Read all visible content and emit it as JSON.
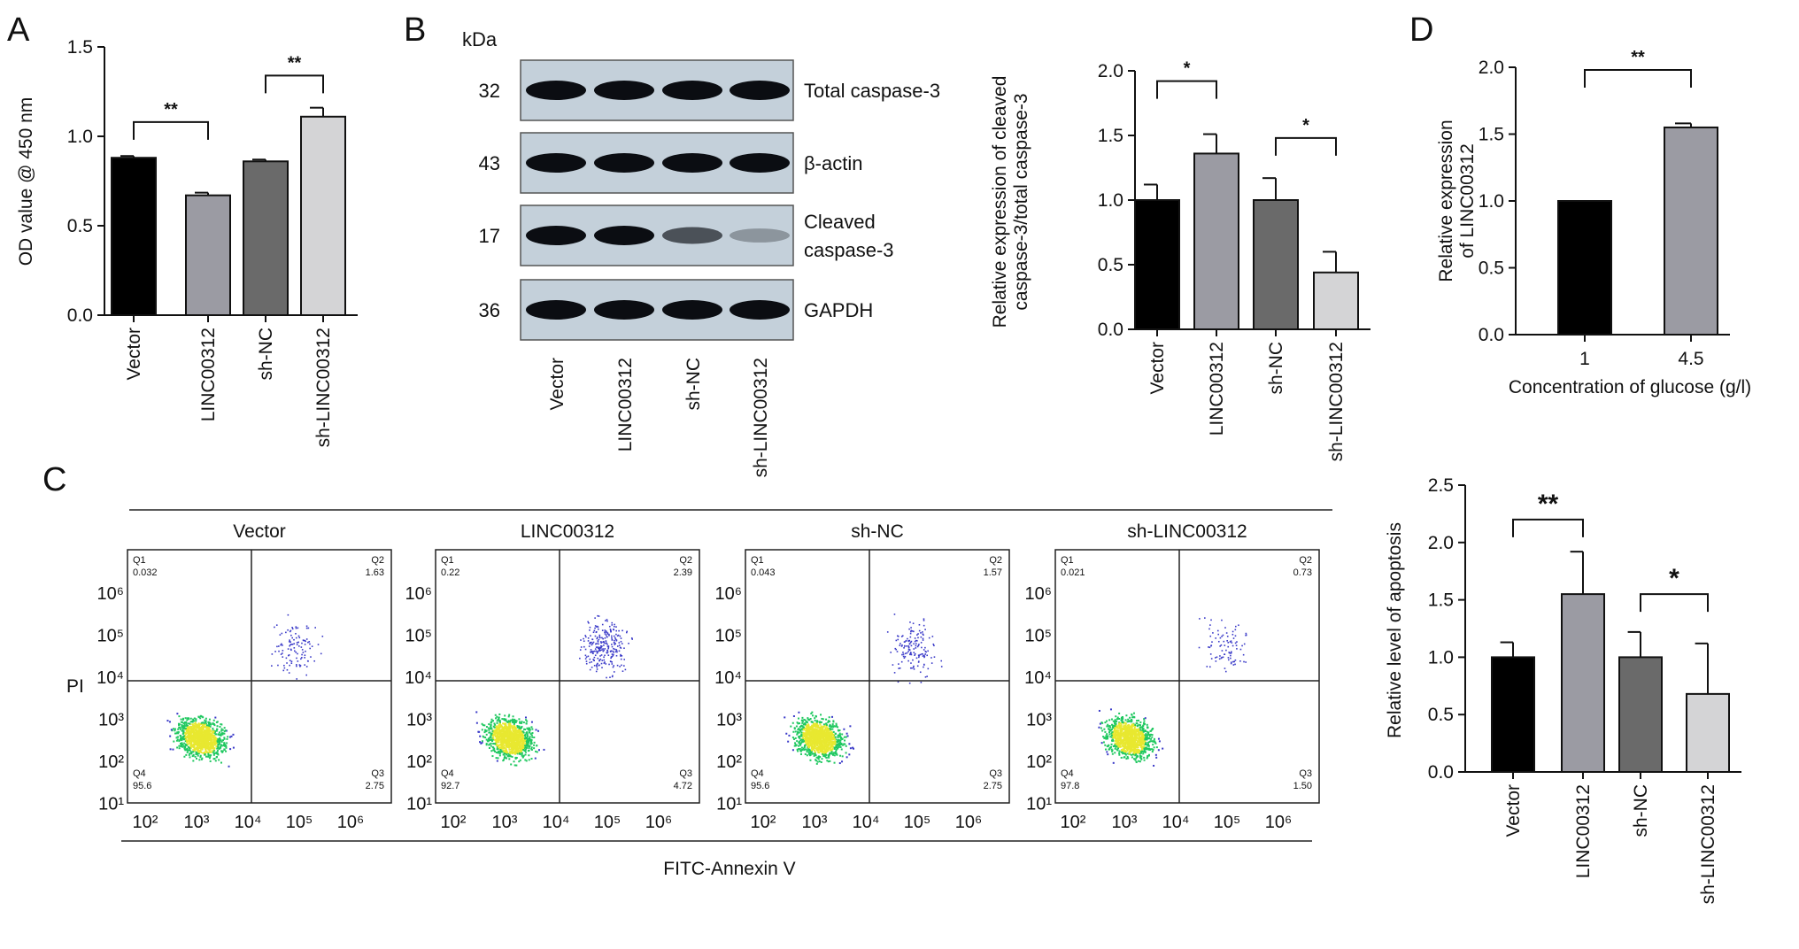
{
  "panels": {
    "a": "A",
    "b": "B",
    "c": "C",
    "d": "D"
  },
  "colors": {
    "black": "#000000",
    "mid_gray": "#9b9ba3",
    "dark_gray": "#6a6a6a",
    "light_gray": "#d4d4d6",
    "dot_blue": "#3a3ac8",
    "core_green": "#20c860",
    "core_yellow": "#e8e830"
  },
  "blot": {
    "kda_label": "kDa",
    "rows": [
      {
        "kda": "32",
        "label": [
          "Total caspase-3"
        ],
        "band_intensity": [
          1.0,
          1.0,
          1.0,
          1.0
        ]
      },
      {
        "kda": "43",
        "label": [
          "β-actin"
        ],
        "band_intensity": [
          1.0,
          1.0,
          1.0,
          1.0
        ]
      },
      {
        "kda": "17",
        "label": [
          "Cleaved",
          "caspase-3"
        ],
        "band_intensity": [
          1.0,
          1.0,
          0.65,
          0.3
        ]
      },
      {
        "kda": "36",
        "label": [
          "GAPDH"
        ],
        "band_intensity": [
          1.0,
          1.0,
          1.0,
          1.0
        ]
      }
    ],
    "lanes": [
      "Vector",
      "LINC00312",
      "sh-NC",
      "sh-LINC00312"
    ]
  },
  "flow": {
    "ylabel": "PI",
    "xlabel": "FITC-Annexin V",
    "x_ticks": [
      "10²",
      "10³",
      "10⁴",
      "10⁵",
      "10⁶"
    ],
    "y_ticks": [
      "10⁶",
      "10⁵",
      "10⁴",
      "10³",
      "10²",
      "10¹"
    ],
    "plots": [
      {
        "title": "Vector",
        "q1": [
          "Q1",
          "0.032"
        ],
        "q2": [
          "Q2",
          "1.63"
        ],
        "q3": [
          "Q3",
          "2.75"
        ],
        "q4": [
          "Q4",
          "95.6"
        ]
      },
      {
        "title": "LINC00312",
        "q1": [
          "Q1",
          "0.22"
        ],
        "q2": [
          "Q2",
          "2.39"
        ],
        "q3": [
          "Q3",
          "4.72"
        ],
        "q4": [
          "Q4",
          "92.7"
        ]
      },
      {
        "title": "sh-NC",
        "q1": [
          "Q1",
          "0.043"
        ],
        "q2": [
          "Q2",
          "1.57"
        ],
        "q3": [
          "Q3",
          "2.75"
        ],
        "q4": [
          "Q4",
          "95.6"
        ]
      },
      {
        "title": "sh-LINC00312",
        "q1": [
          "Q1",
          "0.021"
        ],
        "q2": [
          "Q2",
          "0.73"
        ],
        "q3": [
          "Q3",
          "1.50"
        ],
        "q4": [
          "Q4",
          "97.8"
        ]
      }
    ]
  },
  "chart_data": [
    {
      "id": "A",
      "type": "bar",
      "categories": [
        "Vector",
        "LINC00312",
        "sh-NC",
        "sh-LINC00312"
      ],
      "values": [
        0.88,
        0.67,
        0.86,
        1.11
      ],
      "errors": [
        0.01,
        0.015,
        0.01,
        0.05
      ],
      "colors": [
        "#000000",
        "#9b9ba3",
        "#6a6a6a",
        "#d4d4d6"
      ],
      "ylabel": "OD value @ 450 nm",
      "ylim": [
        0,
        1.5
      ],
      "yticks": [
        "0.0",
        "0.5",
        "1.0",
        "1.5"
      ],
      "ytick_values": [
        0,
        0.5,
        1.0,
        1.5
      ],
      "significance": [
        {
          "from": 0,
          "to": 1,
          "label": "**",
          "y": 1.08
        },
        {
          "from": 2,
          "to": 3,
          "label": "**",
          "y": 1.34
        }
      ]
    },
    {
      "id": "B",
      "type": "bar",
      "categories": [
        "Vector",
        "LINC00312",
        "sh-NC",
        "sh-LINC00312"
      ],
      "values": [
        1.0,
        1.36,
        1.0,
        0.44
      ],
      "errors": [
        0.12,
        0.15,
        0.17,
        0.16
      ],
      "colors": [
        "#000000",
        "#9b9ba3",
        "#6a6a6a",
        "#d4d4d6"
      ],
      "ylabel": [
        "Relative expression of cleaved",
        "caspase-3/total caspase-3"
      ],
      "ylim": [
        0,
        2.0
      ],
      "yticks": [
        "0.0",
        "0.5",
        "1.0",
        "1.5",
        "2.0"
      ],
      "ytick_values": [
        0,
        0.5,
        1.0,
        1.5,
        2.0
      ],
      "significance": [
        {
          "from": 0,
          "to": 1,
          "label": "*",
          "y": 1.92
        },
        {
          "from": 2,
          "to": 3,
          "label": "*",
          "y": 1.48
        }
      ]
    },
    {
      "id": "D",
      "type": "bar",
      "categories": [
        "1",
        "4.5"
      ],
      "values": [
        1.0,
        1.55
      ],
      "errors": [
        0.0,
        0.03
      ],
      "colors": [
        "#000000",
        "#9b9ba3"
      ],
      "xlabel": "Concentration of glucose (g/l)",
      "ylabel": [
        "Relative expression",
        "of LINC00312"
      ],
      "ylim": [
        0,
        2.0
      ],
      "yticks": [
        "0.0",
        "0.5",
        "1.0",
        "1.5",
        "2.0"
      ],
      "ytick_values": [
        0,
        0.5,
        1.0,
        1.5,
        2.0
      ],
      "significance": [
        {
          "from": 0,
          "to": 1,
          "label": "**",
          "y": 1.98
        }
      ]
    },
    {
      "id": "C",
      "type": "bar",
      "categories": [
        "Vector",
        "LINC00312",
        "sh-NC",
        "sh-LINC00312"
      ],
      "values": [
        1.0,
        1.55,
        1.0,
        0.68
      ],
      "errors": [
        0.13,
        0.37,
        0.22,
        0.44
      ],
      "colors": [
        "#000000",
        "#9b9ba3",
        "#6a6a6a",
        "#d4d4d6"
      ],
      "ylabel": "Relative level of apoptosis",
      "ylim": [
        0,
        2.5
      ],
      "yticks": [
        "0.0",
        "0.5",
        "1.0",
        "1.5",
        "2.0",
        "2.5"
      ],
      "ytick_values": [
        0,
        0.5,
        1.0,
        1.5,
        2.0,
        2.5
      ],
      "significance": [
        {
          "from": 0,
          "to": 1,
          "label": "**",
          "y": 2.2
        },
        {
          "from": 2,
          "to": 3,
          "label": "*",
          "y": 1.55
        }
      ]
    }
  ]
}
